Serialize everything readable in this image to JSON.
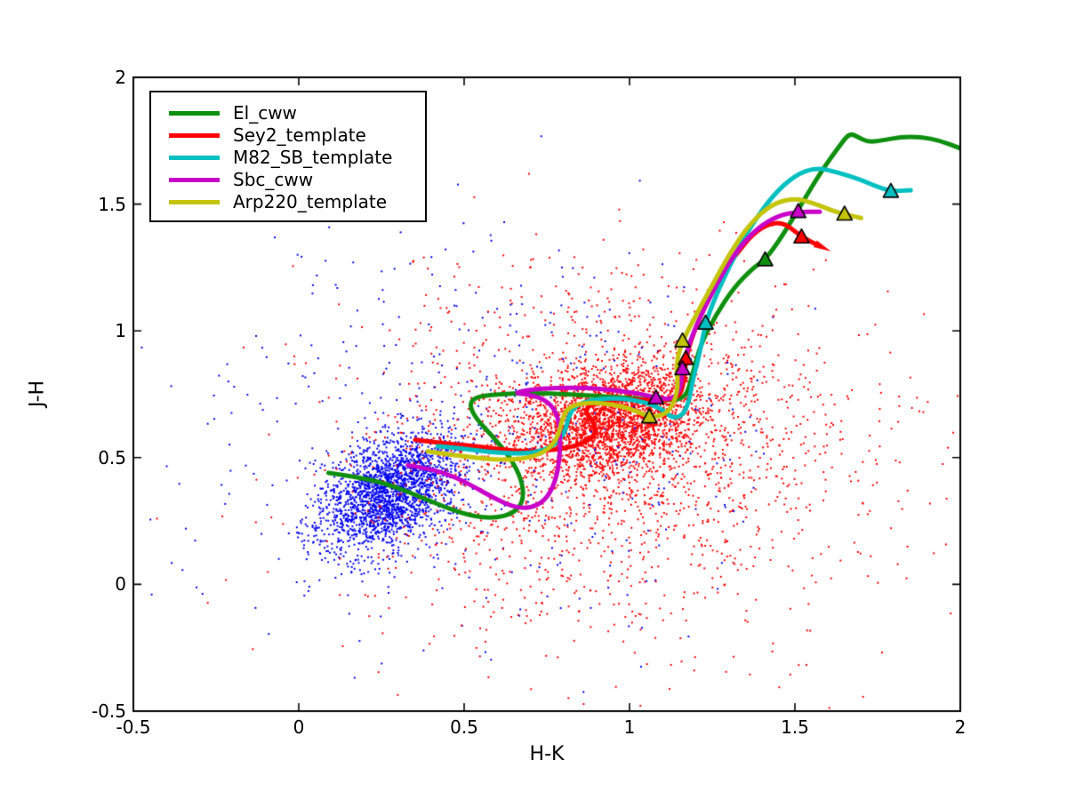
{
  "axes": {
    "x_tick_labels": [
      "-0.5",
      "0",
      "0.5",
      "1",
      "1.5",
      "2"
    ],
    "y_tick_labels": [
      "2",
      "1.5",
      "1",
      "0.5",
      "0",
      "-0.5"
    ],
    "x_ticks": [
      -0.5,
      0,
      0.5,
      1,
      1.5,
      2
    ],
    "y_ticks": [
      2,
      1.5,
      1,
      0.5,
      0,
      -0.5
    ]
  },
  "chart_data": {
    "type": "scatter",
    "title": "",
    "xlabel": "H-K",
    "ylabel": "J-H",
    "xlim": [
      -0.5,
      2
    ],
    "ylim": [
      -0.5,
      2
    ],
    "grid": false,
    "legend_position": "upper-left",
    "point_colors": {
      "blue_population": "#0000ee",
      "red_population": "#ff0000"
    },
    "scatter_clusters": [
      {
        "name": "blue-galaxies-core",
        "color": "#0000ee",
        "n": 1700,
        "cx": 0.3,
        "cy": 0.39,
        "sx": 0.1,
        "sy": 0.105,
        "rho": 0.35
      },
      {
        "name": "blue-galaxies-tail",
        "color": "#0000ee",
        "n": 500,
        "cx": 0.21,
        "cy": 0.27,
        "sx": 0.1,
        "sy": 0.1,
        "rho": 0.3
      },
      {
        "name": "blue-galaxies-halo",
        "color": "#0000ee",
        "n": 380,
        "cx": 0.42,
        "cy": 0.62,
        "sx": 0.42,
        "sy": 0.4,
        "rho": 0.0
      },
      {
        "name": "red-galaxies-core",
        "color": "#ff0000",
        "n": 2400,
        "cx": 0.94,
        "cy": 0.645,
        "sx": 0.135,
        "sy": 0.1,
        "rho": 0.25
      },
      {
        "name": "red-galaxies-halo",
        "color": "#ff0000",
        "n": 1500,
        "cx": 0.95,
        "cy": 0.52,
        "sx": 0.34,
        "sy": 0.28,
        "rho": 0.15
      },
      {
        "name": "red-galaxies-wide",
        "color": "#ff0000",
        "n": 420,
        "cx": 1.05,
        "cy": 0.33,
        "sx": 0.55,
        "sy": 0.43,
        "rho": 0.0
      },
      {
        "name": "red-galaxies-upper",
        "color": "#ff0000",
        "n": 150,
        "cx": 0.85,
        "cy": 1.0,
        "sx": 0.3,
        "sy": 0.22,
        "rho": 0.0
      },
      {
        "name": "blue-galaxies-sprinkle",
        "color": "#0000ee",
        "n": 120,
        "cx": 0.95,
        "cy": 0.6,
        "sx": 0.3,
        "sy": 0.28,
        "rho": 0.0
      }
    ],
    "series": [
      {
        "name": "El_cww",
        "color": "#0f8f0f",
        "points": [
          [
            0.09,
            0.44
          ],
          [
            0.17,
            0.425
          ],
          [
            0.26,
            0.4
          ],
          [
            0.35,
            0.355
          ],
          [
            0.44,
            0.305
          ],
          [
            0.52,
            0.27
          ],
          [
            0.59,
            0.26
          ],
          [
            0.65,
            0.28
          ],
          [
            0.68,
            0.33
          ],
          [
            0.675,
            0.41
          ],
          [
            0.64,
            0.5
          ],
          [
            0.585,
            0.585
          ],
          [
            0.535,
            0.655
          ],
          [
            0.515,
            0.71
          ],
          [
            0.535,
            0.74
          ],
          [
            0.6,
            0.75
          ],
          [
            0.7,
            0.755
          ],
          [
            0.82,
            0.75
          ],
          [
            0.94,
            0.74
          ],
          [
            1.05,
            0.73
          ],
          [
            1.13,
            0.725
          ],
          [
            1.17,
            0.74
          ],
          [
            1.185,
            0.8
          ],
          [
            1.2,
            0.88
          ],
          [
            1.22,
            0.96
          ],
          [
            1.26,
            1.06
          ],
          [
            1.315,
            1.17
          ],
          [
            1.375,
            1.25
          ],
          [
            1.41,
            1.28
          ],
          [
            1.46,
            1.37
          ],
          [
            1.52,
            1.5
          ],
          [
            1.58,
            1.63
          ],
          [
            1.635,
            1.73
          ],
          [
            1.665,
            1.78
          ],
          [
            1.69,
            1.765
          ],
          [
            1.72,
            1.745
          ],
          [
            1.76,
            1.75
          ],
          [
            1.82,
            1.765
          ],
          [
            1.88,
            1.765
          ],
          [
            1.94,
            1.75
          ],
          [
            2.0,
            1.72
          ]
        ],
        "markers": [
          [
            1.41,
            1.28
          ]
        ]
      },
      {
        "name": "Sey2_template",
        "color": "#ff0000",
        "points": [
          [
            0.352,
            0.57
          ],
          [
            0.42,
            0.558
          ],
          [
            0.5,
            0.55
          ],
          [
            0.58,
            0.538
          ],
          [
            0.66,
            0.525
          ],
          [
            0.74,
            0.525
          ],
          [
            0.82,
            0.54
          ],
          [
            0.875,
            0.565
          ],
          [
            0.9,
            0.6
          ],
          [
            0.89,
            0.645
          ],
          [
            0.865,
            0.68
          ],
          [
            0.88,
            0.71
          ],
          [
            0.94,
            0.728
          ],
          [
            1.02,
            0.73
          ],
          [
            1.09,
            0.725
          ],
          [
            1.15,
            0.735
          ],
          [
            1.165,
            0.8
          ],
          [
            1.17,
            0.89
          ],
          [
            1.19,
            0.98
          ],
          [
            1.225,
            1.09
          ],
          [
            1.27,
            1.2
          ],
          [
            1.32,
            1.3
          ],
          [
            1.375,
            1.385
          ],
          [
            1.425,
            1.425
          ],
          [
            1.47,
            1.425
          ],
          [
            1.52,
            1.37
          ],
          [
            1.575,
            1.335
          ]
        ],
        "markers": [
          [
            1.17,
            0.89
          ],
          [
            1.52,
            1.37
          ]
        ],
        "arrow_end": true
      },
      {
        "name": "M82_SB_template",
        "color": "#00bfc0",
        "points": [
          [
            0.42,
            0.545
          ],
          [
            0.5,
            0.535
          ],
          [
            0.58,
            0.522
          ],
          [
            0.66,
            0.515
          ],
          [
            0.725,
            0.522
          ],
          [
            0.775,
            0.55
          ],
          [
            0.805,
            0.6
          ],
          [
            0.815,
            0.66
          ],
          [
            0.835,
            0.705
          ],
          [
            0.89,
            0.73
          ],
          [
            0.97,
            0.735
          ],
          [
            1.045,
            0.72
          ],
          [
            1.1,
            0.69
          ],
          [
            1.13,
            0.655
          ],
          [
            1.16,
            0.665
          ],
          [
            1.18,
            0.72
          ],
          [
            1.19,
            0.8
          ],
          [
            1.21,
            0.9
          ],
          [
            1.23,
            1.03
          ],
          [
            1.255,
            1.12
          ],
          [
            1.3,
            1.25
          ],
          [
            1.36,
            1.4
          ],
          [
            1.43,
            1.53
          ],
          [
            1.5,
            1.615
          ],
          [
            1.565,
            1.645
          ],
          [
            1.63,
            1.625
          ],
          [
            1.7,
            1.595
          ],
          [
            1.745,
            1.57
          ],
          [
            1.79,
            1.55
          ],
          [
            1.85,
            1.555
          ]
        ],
        "markers": [
          [
            1.23,
            1.03
          ],
          [
            1.79,
            1.55
          ]
        ]
      },
      {
        "name": "Sbc_cww",
        "color": "#c800c8",
        "points": [
          [
            0.33,
            0.47
          ],
          [
            0.4,
            0.455
          ],
          [
            0.47,
            0.425
          ],
          [
            0.53,
            0.385
          ],
          [
            0.59,
            0.34
          ],
          [
            0.65,
            0.305
          ],
          [
            0.7,
            0.3
          ],
          [
            0.745,
            0.33
          ],
          [
            0.775,
            0.4
          ],
          [
            0.79,
            0.5
          ],
          [
            0.79,
            0.6
          ],
          [
            0.78,
            0.68
          ],
          [
            0.745,
            0.73
          ],
          [
            0.69,
            0.75
          ],
          [
            0.65,
            0.755
          ],
          [
            0.7,
            0.768
          ],
          [
            0.78,
            0.775
          ],
          [
            0.87,
            0.775
          ],
          [
            0.96,
            0.765
          ],
          [
            1.04,
            0.75
          ],
          [
            1.08,
            0.735
          ],
          [
            1.13,
            0.73
          ],
          [
            1.155,
            0.77
          ],
          [
            1.16,
            0.85
          ],
          [
            1.18,
            0.95
          ],
          [
            1.215,
            1.06
          ],
          [
            1.265,
            1.19
          ],
          [
            1.32,
            1.31
          ],
          [
            1.385,
            1.405
          ],
          [
            1.45,
            1.455
          ],
          [
            1.51,
            1.47
          ],
          [
            1.575,
            1.47
          ]
        ],
        "markers": [
          [
            1.08,
            0.735
          ],
          [
            1.16,
            0.85
          ],
          [
            1.51,
            1.47
          ]
        ]
      },
      {
        "name": "Arp220_template",
        "color": "#c4c40a",
        "points": [
          [
            0.39,
            0.525
          ],
          [
            0.47,
            0.51
          ],
          [
            0.55,
            0.497
          ],
          [
            0.63,
            0.49
          ],
          [
            0.7,
            0.5
          ],
          [
            0.755,
            0.53
          ],
          [
            0.785,
            0.585
          ],
          [
            0.795,
            0.65
          ],
          [
            0.815,
            0.7
          ],
          [
            0.87,
            0.718
          ],
          [
            0.945,
            0.712
          ],
          [
            1.01,
            0.69
          ],
          [
            1.06,
            0.66
          ],
          [
            1.1,
            0.666
          ],
          [
            1.13,
            0.7
          ],
          [
            1.148,
            0.78
          ],
          [
            1.14,
            0.87
          ],
          [
            1.16,
            0.96
          ],
          [
            1.2,
            1.06
          ],
          [
            1.25,
            1.18
          ],
          [
            1.305,
            1.31
          ],
          [
            1.365,
            1.425
          ],
          [
            1.43,
            1.5
          ],
          [
            1.5,
            1.525
          ],
          [
            1.565,
            1.5
          ],
          [
            1.61,
            1.475
          ],
          [
            1.65,
            1.46
          ],
          [
            1.7,
            1.445
          ]
        ],
        "markers": [
          [
            1.06,
            0.66
          ],
          [
            1.16,
            0.96
          ],
          [
            1.65,
            1.46
          ]
        ]
      }
    ]
  }
}
